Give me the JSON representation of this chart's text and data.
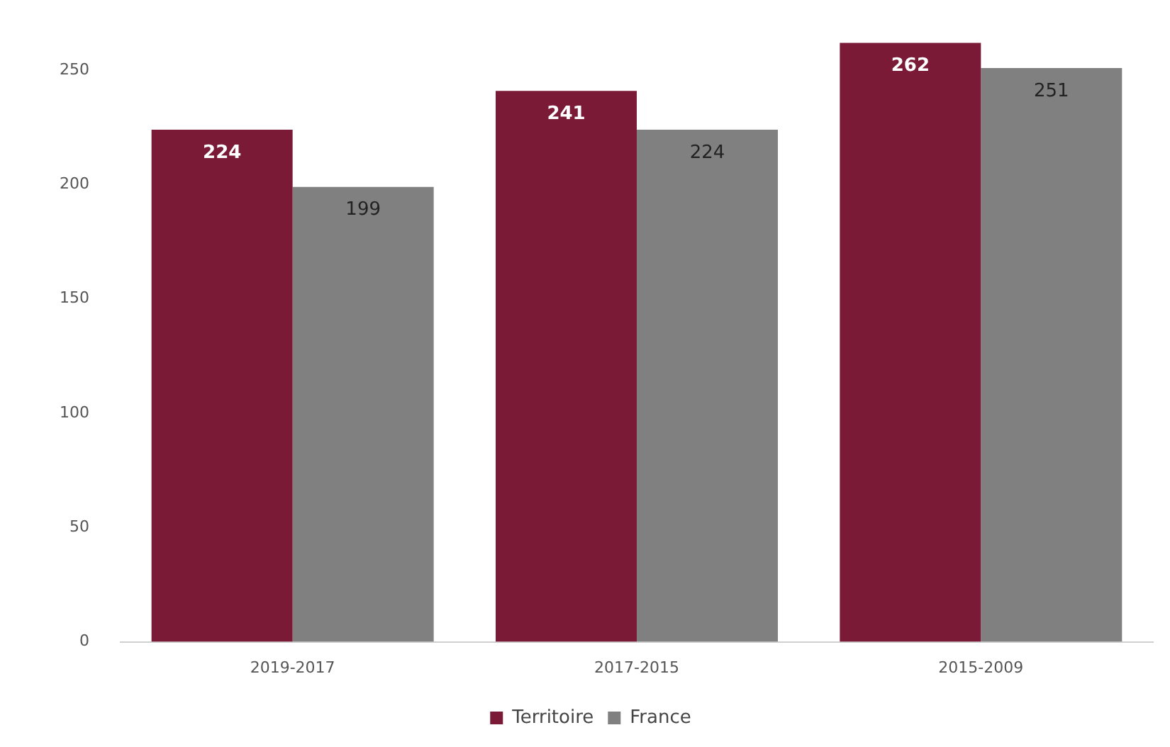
{
  "chart_data": {
    "type": "bar",
    "categories": [
      "2019-2017",
      "2017-2015",
      "2015-2009"
    ],
    "series": [
      {
        "name": "Territoire",
        "color": "#7a1a36",
        "values": [
          224,
          241,
          262
        ]
      },
      {
        "name": "France",
        "color": "#808080",
        "values": [
          199,
          224,
          251
        ]
      }
    ],
    "ylim": [
      0,
      263
    ],
    "yticks": [
      0,
      50,
      100,
      150,
      200,
      250
    ],
    "grid": false,
    "legend": "bottom",
    "data_labels": true
  }
}
